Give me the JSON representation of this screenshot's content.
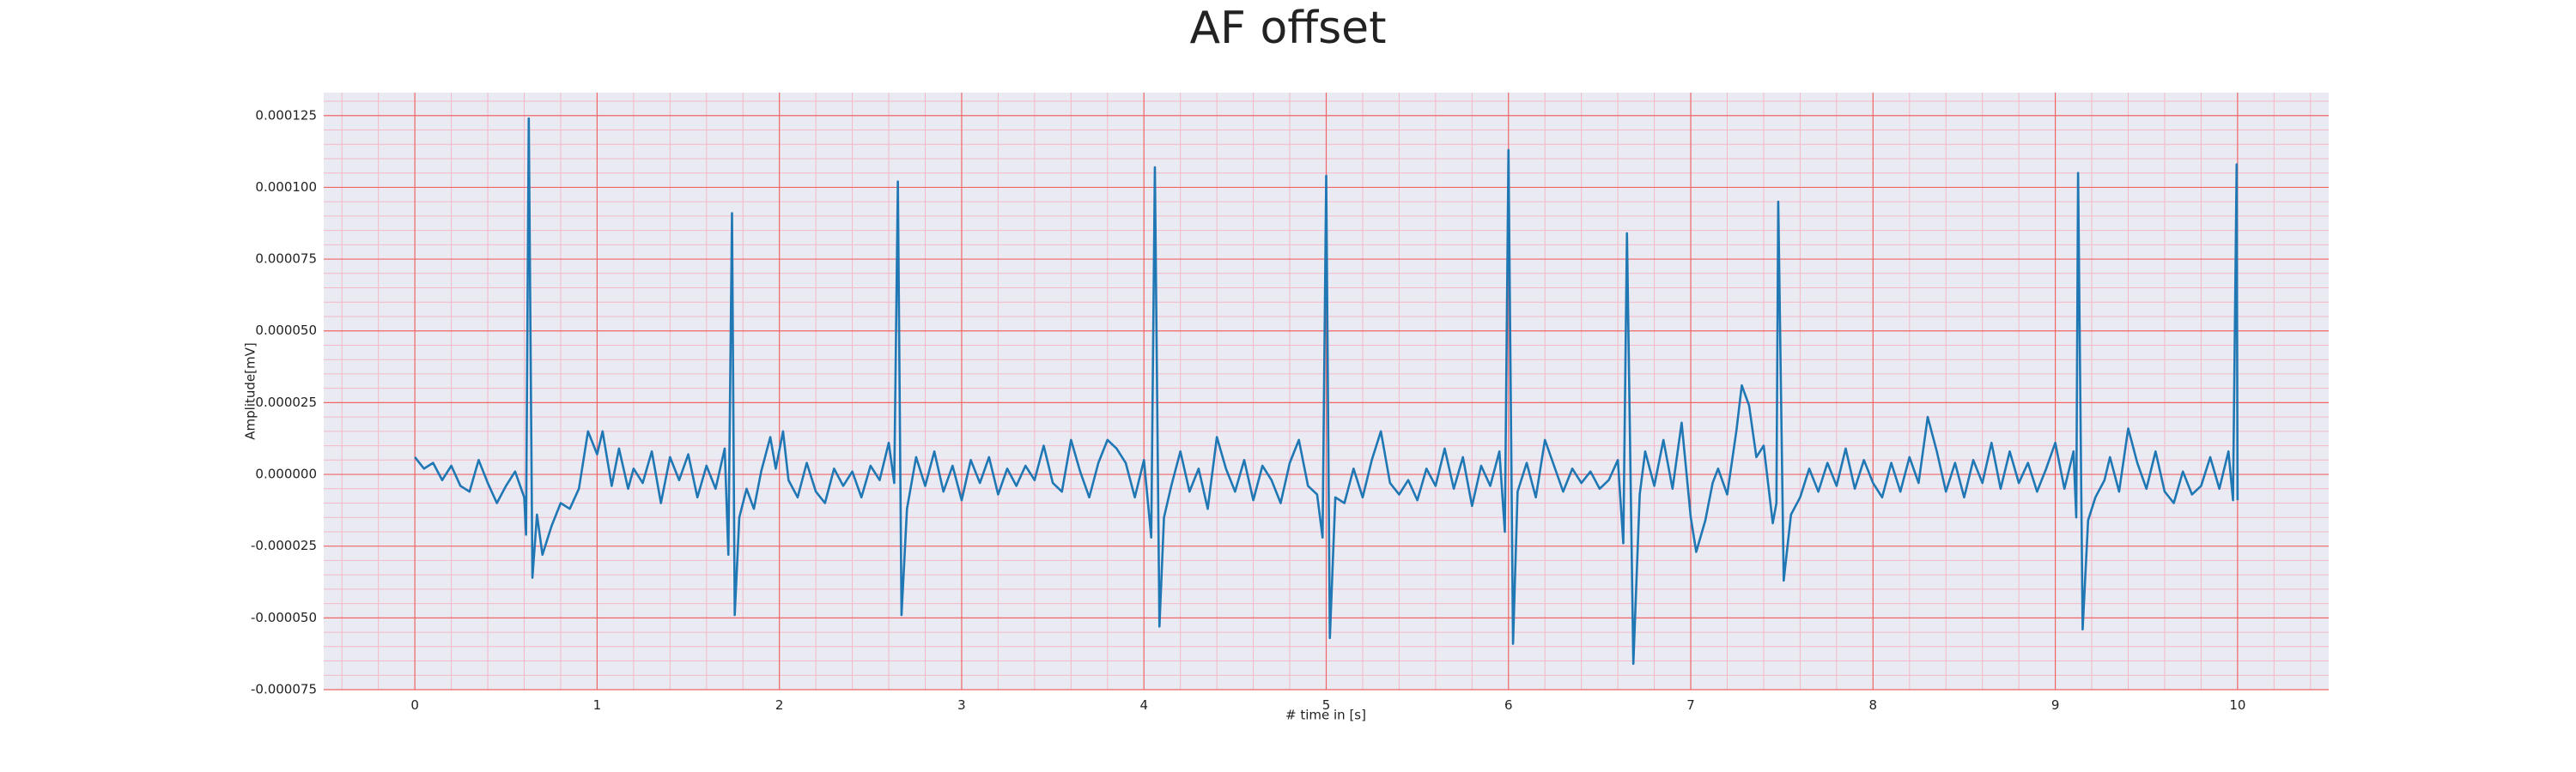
{
  "chart_data": {
    "type": "line",
    "title": "AF offset",
    "x_label": "# time in [s]",
    "y_label": "Amplitude[mV]",
    "xlim": [
      -0.5,
      10.5
    ],
    "xticks": [
      0,
      1,
      2,
      3,
      4,
      5,
      6,
      7,
      8,
      9,
      10
    ],
    "ylim": [
      -7.5e-05,
      0.000133
    ],
    "yticks": [
      {
        "value": -7.5e-05,
        "label": "-0.000075"
      },
      {
        "value": -5e-05,
        "label": "-0.000050"
      },
      {
        "value": -2.5e-05,
        "label": "-0.000025"
      },
      {
        "value": 0,
        "label": "0.000000"
      },
      {
        "value": 2.5e-05,
        "label": "0.000025"
      },
      {
        "value": 5e-05,
        "label": "0.000050"
      },
      {
        "value": 7.5e-05,
        "label": "0.000075"
      },
      {
        "value": 0.0001,
        "label": "0.000100"
      },
      {
        "value": 0.000125,
        "label": "0.000125"
      }
    ],
    "grid": true,
    "grid_color": "#ee6666",
    "minor_grid": true,
    "minor_divisions": 5,
    "minor_grid_color": "#f4b8c8",
    "background": "#eaeaf2",
    "series": [
      {
        "color": "#1f77b4",
        "x": [
          0,
          0.05,
          0.1,
          0.15,
          0.2,
          0.25,
          0.3,
          0.35,
          0.4,
          0.45,
          0.5,
          0.55,
          0.6,
          0.61,
          0.625,
          0.645,
          0.67,
          0.7,
          0.75,
          0.8,
          0.85,
          0.9,
          0.95,
          1.0,
          1.03,
          1.08,
          1.12,
          1.17,
          1.2,
          1.25,
          1.3,
          1.35,
          1.4,
          1.45,
          1.5,
          1.55,
          1.6,
          1.65,
          1.7,
          1.72,
          1.74,
          1.755,
          1.78,
          1.82,
          1.86,
          1.9,
          1.95,
          1.98,
          2.02,
          2.05,
          2.1,
          2.15,
          2.2,
          2.25,
          2.3,
          2.35,
          2.4,
          2.45,
          2.5,
          2.55,
          2.6,
          2.63,
          2.65,
          2.67,
          2.7,
          2.75,
          2.8,
          2.85,
          2.9,
          2.95,
          3.0,
          3.05,
          3.1,
          3.15,
          3.2,
          3.25,
          3.3,
          3.35,
          3.4,
          3.45,
          3.5,
          3.55,
          3.6,
          3.65,
          3.7,
          3.75,
          3.8,
          3.85,
          3.9,
          3.95,
          4.0,
          4.04,
          4.06,
          4.085,
          4.11,
          4.15,
          4.2,
          4.25,
          4.3,
          4.35,
          4.4,
          4.45,
          4.5,
          4.55,
          4.6,
          4.65,
          4.7,
          4.75,
          4.8,
          4.85,
          4.9,
          4.95,
          4.98,
          5.0,
          5.02,
          5.05,
          5.1,
          5.15,
          5.2,
          5.25,
          5.3,
          5.35,
          5.4,
          5.45,
          5.5,
          5.55,
          5.6,
          5.65,
          5.7,
          5.75,
          5.8,
          5.85,
          5.9,
          5.95,
          5.98,
          6.0,
          6.025,
          6.05,
          6.1,
          6.15,
          6.2,
          6.25,
          6.3,
          6.35,
          6.4,
          6.45,
          6.5,
          6.55,
          6.6,
          6.63,
          6.65,
          6.685,
          6.72,
          6.75,
          6.8,
          6.85,
          6.9,
          6.95,
          7.0,
          7.03,
          7.08,
          7.12,
          7.15,
          7.2,
          7.25,
          7.28,
          7.32,
          7.36,
          7.4,
          7.45,
          7.47,
          7.48,
          7.51,
          7.55,
          7.6,
          7.65,
          7.7,
          7.75,
          7.8,
          7.85,
          7.9,
          7.95,
          8.0,
          8.05,
          8.1,
          8.15,
          8.2,
          8.25,
          8.3,
          8.35,
          8.4,
          8.45,
          8.5,
          8.55,
          8.6,
          8.65,
          8.7,
          8.75,
          8.8,
          8.85,
          8.9,
          8.95,
          9.0,
          9.05,
          9.1,
          9.115,
          9.125,
          9.15,
          9.18,
          9.22,
          9.27,
          9.3,
          9.35,
          9.4,
          9.45,
          9.5,
          9.55,
          9.6,
          9.65,
          9.7,
          9.75,
          9.8,
          9.85,
          9.9,
          9.95,
          9.975,
          9.995,
          10.0
        ],
        "values": [
          6e-06,
          2e-06,
          4e-06,
          -2e-06,
          3e-06,
          -4e-06,
          -6e-06,
          5e-06,
          -3e-06,
          -1e-05,
          -4e-06,
          1e-06,
          -8e-06,
          -2.1e-05,
          0.000124,
          -3.6e-05,
          -1.4e-05,
          -2.8e-05,
          -1.8e-05,
          -1e-05,
          -1.2e-05,
          -5e-06,
          1.5e-05,
          7e-06,
          1.5e-05,
          -4e-06,
          9e-06,
          -5e-06,
          2e-06,
          -3e-06,
          8e-06,
          -1e-05,
          6e-06,
          -2e-06,
          7e-06,
          -8e-06,
          3e-06,
          -5e-06,
          9e-06,
          -2.8e-05,
          9.1e-05,
          -4.9e-05,
          -1.5e-05,
          -5e-06,
          -1.2e-05,
          1e-06,
          1.3e-05,
          2e-06,
          1.5e-05,
          -2e-06,
          -8e-06,
          4e-06,
          -6e-06,
          -1e-05,
          2e-06,
          -4e-06,
          1e-06,
          -8e-06,
          3e-06,
          -2e-06,
          1.1e-05,
          -3e-06,
          0.000102,
          -4.9e-05,
          -1.2e-05,
          6e-06,
          -4e-06,
          8e-06,
          -6e-06,
          3e-06,
          -9e-06,
          5e-06,
          -3e-06,
          6e-06,
          -7e-06,
          2e-06,
          -4e-06,
          3e-06,
          -2e-06,
          1e-05,
          -3e-06,
          -6e-06,
          1.2e-05,
          1e-06,
          -8e-06,
          4e-06,
          1.2e-05,
          9e-06,
          4e-06,
          -8e-06,
          5e-06,
          -2.2e-05,
          0.000107,
          -5.3e-05,
          -1.5e-05,
          -4e-06,
          8e-06,
          -6e-06,
          2e-06,
          -1.2e-05,
          1.3e-05,
          2e-06,
          -6e-06,
          5e-06,
          -9e-06,
          3e-06,
          -2e-06,
          -1e-05,
          4e-06,
          1.2e-05,
          -4e-06,
          -7e-06,
          -2.2e-05,
          0.000104,
          -5.7e-05,
          -8e-06,
          -1e-05,
          2e-06,
          -8e-06,
          5e-06,
          1.5e-05,
          -3e-06,
          -7e-06,
          -2e-06,
          -9e-06,
          2e-06,
          -4e-06,
          9e-06,
          -5e-06,
          6e-06,
          -1.1e-05,
          3e-06,
          -4e-06,
          8e-06,
          -2e-05,
          0.000113,
          -5.9e-05,
          -6e-06,
          4e-06,
          -8e-06,
          1.2e-05,
          3e-06,
          -6e-06,
          2e-06,
          -3e-06,
          1e-06,
          -5e-06,
          -2e-06,
          5e-06,
          -2.4e-05,
          8.4e-05,
          -6.6e-05,
          -7e-06,
          8e-06,
          -4e-06,
          1.2e-05,
          -5e-06,
          1.8e-05,
          -1.5e-05,
          -2.7e-05,
          -1.6e-05,
          -3e-06,
          2e-06,
          -7e-06,
          1.5e-05,
          3.1e-05,
          2.4e-05,
          6e-06,
          1e-05,
          -1.7e-05,
          -1e-05,
          9.5e-05,
          -3.7e-05,
          -1.4e-05,
          -8e-06,
          2e-06,
          -6e-06,
          4e-06,
          -4e-06,
          9e-06,
          -5e-06,
          5e-06,
          -3e-06,
          -8e-06,
          4e-06,
          -6e-06,
          6e-06,
          -3e-06,
          2e-05,
          8e-06,
          -6e-06,
          4e-06,
          -8e-06,
          5e-06,
          -3e-06,
          1.1e-05,
          -5e-06,
          8e-06,
          -3e-06,
          4e-06,
          -6e-06,
          2e-06,
          1.1e-05,
          -5e-06,
          8e-06,
          -1.5e-05,
          0.000105,
          -5.4e-05,
          -1.6e-05,
          -8e-06,
          -2e-06,
          6e-06,
          -6e-06,
          1.6e-05,
          4e-06,
          -5e-06,
          8e-06,
          -6e-06,
          -1e-05,
          1e-06,
          -7e-06,
          -4e-06,
          6e-06,
          -5e-06,
          8e-06,
          -9e-06,
          0.000108,
          -9e-06
        ]
      }
    ]
  }
}
